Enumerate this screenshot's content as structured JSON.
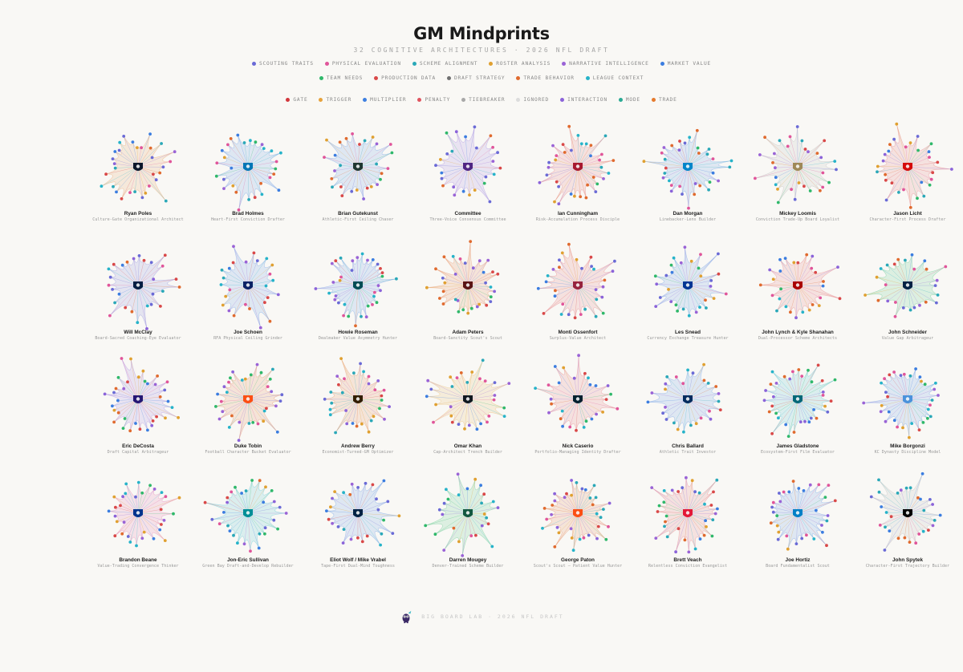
{
  "title": "GM Mindprints",
  "subtitle": "32 COGNITIVE ARCHITECTURES · 2026 NFL DRAFT",
  "data_categories": [
    {
      "label": "SCOUTING TRAITS",
      "color": "#6a6ad6"
    },
    {
      "label": "PHYSICAL EVALUATION",
      "color": "#e0559a"
    },
    {
      "label": "SCHEME ALIGNMENT",
      "color": "#2aa8b8"
    },
    {
      "label": "ROSTER ANALYSIS",
      "color": "#e0a030"
    },
    {
      "label": "NARRATIVE INTELLIGENCE",
      "color": "#9a63d6"
    },
    {
      "label": "MARKET VALUE",
      "color": "#3b7de0"
    },
    {
      "label": "TEAM NEEDS",
      "color": "#2fb86a"
    },
    {
      "label": "PRODUCTION DATA",
      "color": "#d94848"
    },
    {
      "label": "DRAFT STRATEGY",
      "color": "#707070"
    },
    {
      "label": "TRADE BEHAVIOR",
      "color": "#e06a2e"
    },
    {
      "label": "LEAGUE CONTEXT",
      "color": "#26b3c9"
    }
  ],
  "node_types": [
    {
      "label": "GATE",
      "color": "#d2373c"
    },
    {
      "label": "TRIGGER",
      "color": "#e6a23c"
    },
    {
      "label": "MULTIPLIER",
      "color": "#3d7fe0"
    },
    {
      "label": "PENALTY",
      "color": "#e0545f"
    },
    {
      "label": "TIEBREAKER",
      "color": "#a8a8a8"
    },
    {
      "label": "IGNORED",
      "color": "#dcdcdc"
    },
    {
      "label": "INTERACTION",
      "color": "#8b63d9"
    },
    {
      "label": "MODE",
      "color": "#2aaa94"
    },
    {
      "label": "TRADE",
      "color": "#e57a2d"
    }
  ],
  "gms": [
    {
      "name": "Ryan Poles",
      "desc": "Culture-Gate Organizational Architect",
      "tint": "#e58a3c",
      "logo": "#0b162a",
      "logo_icon": "bears-logo-icon"
    },
    {
      "name": "Brad Holmes",
      "desc": "Heart-First Conviction Drafter",
      "tint": "#3d7fe0",
      "logo": "#0076b6",
      "logo_icon": "lions-logo-icon"
    },
    {
      "name": "Brian Gutekunst",
      "desc": "Athletic-First Ceiling Chaser",
      "tint": "#3d7fe0",
      "logo": "#203731",
      "logo_icon": "packers-logo-icon"
    },
    {
      "name": "Committee",
      "desc": "Three-Voice Consensus Committee",
      "tint": "#8b63d9",
      "logo": "#4f2683",
      "logo_icon": "vikings-logo-icon"
    },
    {
      "name": "Ian Cunningham",
      "desc": "Risk-Accumulation Process Disciple",
      "tint": "#e0545f",
      "logo": "#a71930",
      "logo_icon": "falcons-logo-icon"
    },
    {
      "name": "Dan Morgan",
      "desc": "Linebacker-Lens Builder",
      "tint": "#3d7fe0",
      "logo": "#0085ca",
      "logo_icon": "panthers-logo-icon"
    },
    {
      "name": "Mickey Loomis",
      "desc": "Conviction Trade-Up Board Loyalist",
      "tint": "#a8a8a8",
      "logo": "#9f8958",
      "logo_icon": "saints-logo-icon"
    },
    {
      "name": "Jason Licht",
      "desc": "Character-First Process Drafter",
      "tint": "#e0545f",
      "logo": "#d50a0a",
      "logo_icon": "buccaneers-logo-icon"
    },
    {
      "name": "Will McClay",
      "desc": "Board-Sacred Coaching-Eye Evaluator",
      "tint": "#6a6ad6",
      "logo": "#041e42",
      "logo_icon": "cowboys-logo-icon"
    },
    {
      "name": "Joe Schoen",
      "desc": "RFA Physical Ceiling Grinder",
      "tint": "#3d7fe0",
      "logo": "#0b2265",
      "logo_icon": "giants-logo-icon"
    },
    {
      "name": "Howie Roseman",
      "desc": "Dealmaker Value Asymmetry Hunter",
      "tint": "#3d7fe0",
      "logo": "#004c54",
      "logo_icon": "eagles-logo-icon"
    },
    {
      "name": "Adam Peters",
      "desc": "Board-Sanctity Scout's Scout",
      "tint": "#e06a2e",
      "logo": "#5a1414",
      "logo_icon": "commanders-logo-icon"
    },
    {
      "name": "Monti Ossenfort",
      "desc": "Surplus-Value Architect",
      "tint": "#e0545f",
      "logo": "#97233f",
      "logo_icon": "cardinals-logo-icon"
    },
    {
      "name": "Les Snead",
      "desc": "Currency Exchange Treasure Hunter",
      "tint": "#3d7fe0",
      "logo": "#003594",
      "logo_icon": "rams-logo-icon"
    },
    {
      "name": "John Lynch & Kyle Shanahan",
      "desc": "Dual-Processor Scheme Architects",
      "tint": "#e0545f",
      "logo": "#aa0000",
      "logo_icon": "49ers-logo-icon"
    },
    {
      "name": "John Schneider",
      "desc": "Value Gap Arbitrageur",
      "tint": "#2fb86a",
      "logo": "#002244",
      "logo_icon": "seahawks-logo-icon"
    },
    {
      "name": "Eric DeCosta",
      "desc": "Draft Capital Arbitrageur",
      "tint": "#8b63d9",
      "logo": "#241773",
      "logo_icon": "ravens-logo-icon"
    },
    {
      "name": "Duke Tobin",
      "desc": "Football Character Bucket Evaluator",
      "tint": "#e06a2e",
      "logo": "#fb4f14",
      "logo_icon": "bengals-logo-icon"
    },
    {
      "name": "Andrew Berry",
      "desc": "Economist-Turned-GM Optimizer",
      "tint": "#e06a2e",
      "logo": "#311d00",
      "logo_icon": "browns-logo-icon"
    },
    {
      "name": "Omar Khan",
      "desc": "Cap-Architect Trench Builder",
      "tint": "#e6a23c",
      "logo": "#101820",
      "logo_icon": "steelers-logo-icon"
    },
    {
      "name": "Nick Caserio",
      "desc": "Portfolio-Managing Identity Drafter",
      "tint": "#e0545f",
      "logo": "#03202f",
      "logo_icon": "texans-logo-icon"
    },
    {
      "name": "Chris Ballard",
      "desc": "Athletic Trait Investor",
      "tint": "#3d7fe0",
      "logo": "#002c5f",
      "logo_icon": "colts-logo-icon"
    },
    {
      "name": "James Gladstone",
      "desc": "Ecosystem-First Film Evaluator",
      "tint": "#26b3c9",
      "logo": "#006778",
      "logo_icon": "jaguars-logo-icon"
    },
    {
      "name": "Mike Borgonzi",
      "desc": "KC Dynasty Discipline Model",
      "tint": "#3d7fe0",
      "logo": "#4b92db",
      "logo_icon": "titans-logo-icon"
    },
    {
      "name": "Brandon Beane",
      "desc": "Value-Trading Convergence Thinker",
      "tint": "#e0559a",
      "logo": "#00338d",
      "logo_icon": "bills-logo-icon"
    },
    {
      "name": "Jon-Eric Sullivan",
      "desc": "Green Bay Draft-and-Develop Rebuilder",
      "tint": "#26b3c9",
      "logo": "#008e97",
      "logo_icon": "dolphins-logo-icon"
    },
    {
      "name": "Eliot Wolf / Mike Vrabel",
      "desc": "Tape-First Dual-Mind Toughness",
      "tint": "#3d7fe0",
      "logo": "#002244",
      "logo_icon": "patriots-logo-icon"
    },
    {
      "name": "Darren Mougey",
      "desc": "Denver-Trained Scheme Builder",
      "tint": "#2fb86a",
      "logo": "#125740",
      "logo_icon": "jets-logo-icon"
    },
    {
      "name": "George Paton",
      "desc": "Scout's Scout — Patient Value Hunter",
      "tint": "#e06a2e",
      "logo": "#fb4f14",
      "logo_icon": "broncos-logo-icon"
    },
    {
      "name": "Brett Veach",
      "desc": "Relentless Conviction Evangelist",
      "tint": "#e0545f",
      "logo": "#e31837",
      "logo_icon": "chiefs-logo-icon"
    },
    {
      "name": "Joe Hortiz",
      "desc": "Board Fundamentalist Scout",
      "tint": "#3d7fe0",
      "logo": "#0080c6",
      "logo_icon": "chargers-logo-icon"
    },
    {
      "name": "John Spytek",
      "desc": "Character-First Trajectory Builder",
      "tint": "#a8a8a8",
      "logo": "#000000",
      "logo_icon": "raiders-logo-icon"
    }
  ],
  "footer": "BIG BOARD LAB · 2026 NFL DRAFT"
}
